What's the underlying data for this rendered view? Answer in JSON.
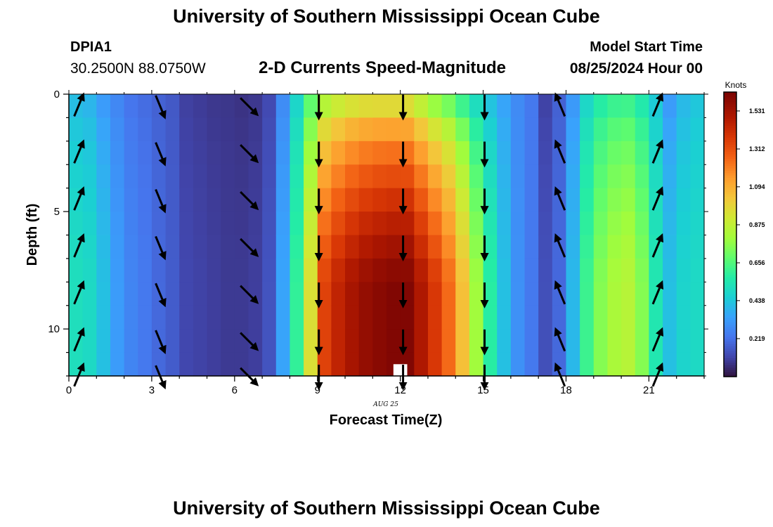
{
  "header": {
    "title": "University of Southern Mississippi Ocean Cube",
    "station_id": "DPIA1",
    "coordinates": "30.2500N  88.0750W",
    "chart_subtitle": "2-D Currents Speed-Magnitude",
    "model_start_label": "Model Start Time",
    "model_start_value": "08/25/2024 Hour 00"
  },
  "footer": {
    "title": "University of Southern Mississippi Ocean Cube"
  },
  "chart_data": {
    "type": "heatmap",
    "title": "2-D Currents Speed-Magnitude",
    "xlabel": "Forecast Time(Z)",
    "ylabel": "Depth (ft)",
    "date_label": "AUG 25",
    "x_range": [
      0,
      23
    ],
    "y_range": [
      0,
      12
    ],
    "x_ticks": [
      0,
      3,
      6,
      9,
      12,
      15,
      18,
      21
    ],
    "x_tick_labels": [
      "0",
      "3",
      "6",
      "9",
      "12",
      "15",
      "18",
      "21"
    ],
    "y_ticks": [
      0,
      5,
      10
    ],
    "y_tick_labels": [
      "0",
      "5",
      "10"
    ],
    "y_inverted": true,
    "colorbar": {
      "title": "Knots",
      "min": 0.0,
      "max": 1.64,
      "tick_values": [
        0.219,
        0.438,
        0.656,
        0.875,
        1.094,
        1.312,
        1.531
      ],
      "tick_labels": [
        "0.219",
        "0.438",
        "0.656",
        "0.875",
        "1.094",
        "1.312",
        "1.531"
      ]
    },
    "hours": [
      0,
      0.5,
      1,
      1.5,
      2,
      2.5,
      3,
      3.5,
      4,
      4.5,
      5,
      5.5,
      6,
      6.5,
      7,
      7.5,
      8,
      8.5,
      9,
      9.5,
      10,
      10.5,
      11,
      11.5,
      12,
      12.5,
      13,
      13.5,
      14,
      14.5,
      15,
      15.5,
      16,
      16.5,
      17,
      17.5,
      18,
      18.5,
      19,
      19.5,
      20,
      20.5,
      21,
      21.5,
      22,
      22.5
    ],
    "surface_speed": [
      0.38,
      0.36,
      0.3,
      0.26,
      0.22,
      0.2,
      0.18,
      0.16,
      0.1,
      0.09,
      0.08,
      0.08,
      0.07,
      0.08,
      0.12,
      0.27,
      0.45,
      0.6,
      0.68,
      0.72,
      0.75,
      0.76,
      0.76,
      0.75,
      0.74,
      0.67,
      0.59,
      0.55,
      0.48,
      0.42,
      0.38,
      0.33,
      0.28,
      0.24,
      0.1,
      0.18,
      0.3,
      0.45,
      0.52,
      0.55,
      0.55,
      0.5,
      0.42,
      0.3,
      0.38,
      0.42
    ],
    "max_speed_by_hour": [
      0.52,
      0.5,
      0.42,
      0.33,
      0.27,
      0.24,
      0.2,
      0.17,
      0.12,
      0.11,
      0.1,
      0.09,
      0.09,
      0.1,
      0.15,
      0.35,
      0.6,
      0.95,
      1.35,
      1.45,
      1.52,
      1.57,
      1.6,
      1.62,
      1.62,
      1.5,
      1.38,
      1.25,
      1.05,
      0.8,
      0.58,
      0.42,
      0.3,
      0.24,
      0.14,
      0.2,
      0.4,
      0.62,
      0.75,
      0.82,
      0.85,
      0.75,
      0.55,
      0.42,
      0.48,
      0.5
    ],
    "missing_cells": [
      {
        "hour": 12,
        "depth_ft": 11.5
      }
    ],
    "vectors": [
      {
        "hour": 0.35,
        "direction": "NNE"
      },
      {
        "hour": 3.3,
        "direction": "SSE"
      },
      {
        "hour": 6.5,
        "direction": "SE"
      },
      {
        "hour": 9.05,
        "direction": "S"
      },
      {
        "hour": 12.1,
        "direction": "S"
      },
      {
        "hour": 15.05,
        "direction": "S"
      },
      {
        "hour": 17.8,
        "direction": "NNW"
      },
      {
        "hour": 21.3,
        "direction": "NNE"
      }
    ],
    "vector_depths_ft": [
      0.5,
      2.5,
      4.5,
      6.5,
      8.5,
      10.5,
      12
    ]
  }
}
